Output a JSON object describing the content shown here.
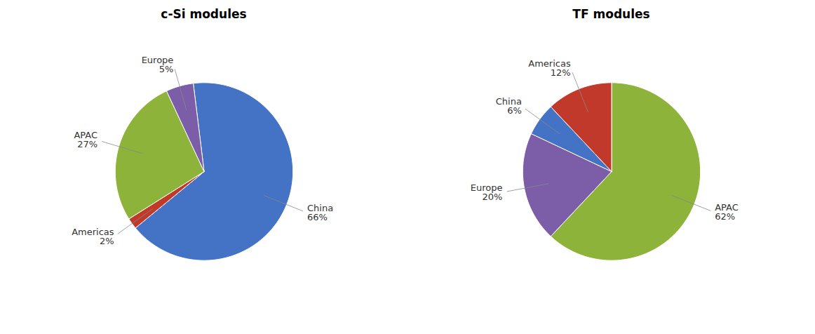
{
  "chart_data": [
    {
      "type": "pie",
      "title": "c-Si modules",
      "categories": [
        "China",
        "Americas",
        "APAC",
        "Europe"
      ],
      "values": [
        66,
        2,
        27,
        5
      ],
      "value_labels": [
        "66%",
        "2%",
        "27%",
        "5%"
      ],
      "colors": [
        "#4472c4",
        "#c0392b",
        "#8db33a",
        "#7b5ea7"
      ],
      "data_labels": true
    },
    {
      "type": "pie",
      "title": "TF modules",
      "categories": [
        "APAC",
        "Europe",
        "China",
        "Americas"
      ],
      "values": [
        62,
        20,
        6,
        12
      ],
      "value_labels": [
        "62%",
        "20%",
        "6%",
        "12%"
      ],
      "colors": [
        "#8db33a",
        "#7b5ea7",
        "#4472c4",
        "#c0392b"
      ],
      "data_labels": true
    }
  ]
}
